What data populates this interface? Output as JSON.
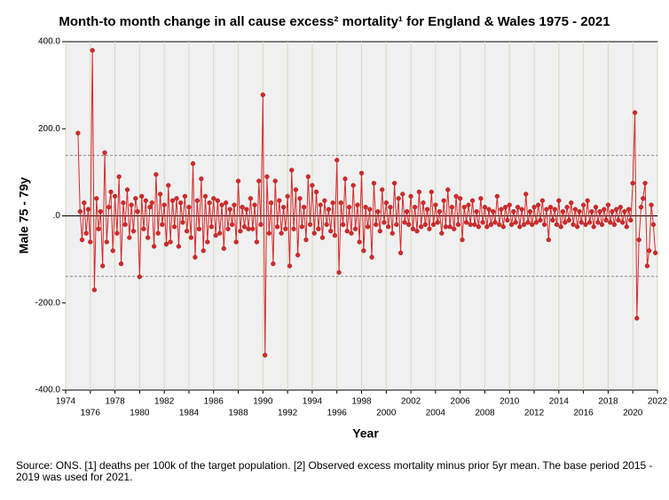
{
  "chart_data": {
    "type": "line",
    "title": "Month-to month change in all cause excess² mortality¹  for England & Wales 1975 - 2021",
    "y_label": "Male 75 - 79y",
    "x_label": "Year",
    "footnote": "Source: ONS. [1] deaths per 100k of the target population. [2] Observed excess mortality minus prior 5yr mean. The base period 2015 - 2019 was used for 2021.",
    "xlim": [
      1974,
      2022
    ],
    "ylim": [
      -400,
      400
    ],
    "xticks": [
      1974,
      1976,
      1978,
      1980,
      1982,
      1984,
      1986,
      1988,
      1990,
      1992,
      1994,
      1996,
      1998,
      2000,
      2002,
      2004,
      2006,
      2008,
      2010,
      2012,
      2014,
      2016,
      2018,
      2020,
      2022
    ],
    "yticks": [
      {
        "value": -400,
        "label": "-400.0"
      },
      {
        "value": -200,
        "label": "-200.0"
      },
      {
        "value": 0,
        "label": ".0"
      },
      {
        "value": 200,
        "label": "200.0"
      },
      {
        "value": 400,
        "label": "400.0"
      }
    ],
    "reference_lines": [
      139,
      0,
      -139
    ],
    "grid": true,
    "x": [
      1975,
      1975.17,
      1975.33,
      1975.5,
      1975.67,
      1975.83,
      1976,
      1976.17,
      1976.33,
      1976.5,
      1976.67,
      1976.83,
      1977,
      1977.17,
      1977.33,
      1977.5,
      1977.67,
      1977.83,
      1978,
      1978.17,
      1978.33,
      1978.5,
      1978.67,
      1978.83,
      1979,
      1979.17,
      1979.33,
      1979.5,
      1979.67,
      1979.83,
      1980,
      1980.17,
      1980.33,
      1980.5,
      1980.67,
      1980.83,
      1981,
      1981.17,
      1981.33,
      1981.5,
      1981.67,
      1981.83,
      1982,
      1982.17,
      1982.33,
      1982.5,
      1982.67,
      1982.83,
      1983,
      1983.17,
      1983.33,
      1983.5,
      1983.67,
      1983.83,
      1984,
      1984.17,
      1984.33,
      1984.5,
      1984.67,
      1984.83,
      1985,
      1985.17,
      1985.33,
      1985.5,
      1985.67,
      1985.83,
      1986,
      1986.17,
      1986.33,
      1986.5,
      1986.67,
      1986.83,
      1987,
      1987.17,
      1987.33,
      1987.5,
      1987.67,
      1987.83,
      1988,
      1988.17,
      1988.33,
      1988.5,
      1988.67,
      1988.83,
      1989,
      1989.17,
      1989.33,
      1989.5,
      1989.67,
      1989.83,
      1990,
      1990.17,
      1990.33,
      1990.5,
      1990.67,
      1990.83,
      1991,
      1991.17,
      1991.33,
      1991.5,
      1991.67,
      1991.83,
      1992,
      1992.17,
      1992.33,
      1992.5,
      1992.67,
      1992.83,
      1993,
      1993.17,
      1993.33,
      1993.5,
      1993.67,
      1993.83,
      1994,
      1994.17,
      1994.33,
      1994.5,
      1994.67,
      1994.83,
      1995,
      1995.17,
      1995.33,
      1995.5,
      1995.67,
      1995.83,
      1996,
      1996.17,
      1996.33,
      1996.5,
      1996.67,
      1996.83,
      1997,
      1997.17,
      1997.33,
      1997.5,
      1997.67,
      1997.83,
      1998,
      1998.17,
      1998.33,
      1998.5,
      1998.67,
      1998.83,
      1999,
      1999.17,
      1999.33,
      1999.5,
      1999.67,
      1999.83,
      2000,
      2000.17,
      2000.33,
      2000.5,
      2000.67,
      2000.83,
      2001,
      2001.17,
      2001.33,
      2001.5,
      2001.67,
      2001.83,
      2002,
      2002.17,
      2002.33,
      2002.5,
      2002.67,
      2002.83,
      2003,
      2003.17,
      2003.33,
      2003.5,
      2003.67,
      2003.83,
      2004,
      2004.17,
      2004.33,
      2004.5,
      2004.67,
      2004.83,
      2005,
      2005.17,
      2005.33,
      2005.5,
      2005.67,
      2005.83,
      2006,
      2006.17,
      2006.33,
      2006.5,
      2006.67,
      2006.83,
      2007,
      2007.17,
      2007.33,
      2007.5,
      2007.67,
      2007.83,
      2008,
      2008.17,
      2008.33,
      2008.5,
      2008.67,
      2008.83,
      2009,
      2009.17,
      2009.33,
      2009.5,
      2009.67,
      2009.83,
      2010,
      2010.17,
      2010.33,
      2010.5,
      2010.67,
      2010.83,
      2011,
      2011.17,
      2011.33,
      2011.5,
      2011.67,
      2011.83,
      2012,
      2012.17,
      2012.33,
      2012.5,
      2012.67,
      2012.83,
      2013,
      2013.17,
      2013.33,
      2013.5,
      2013.67,
      2013.83,
      2014,
      2014.17,
      2014.33,
      2014.5,
      2014.67,
      2014.83,
      2015,
      2015.17,
      2015.33,
      2015.5,
      2015.67,
      2015.83,
      2016,
      2016.17,
      2016.33,
      2016.5,
      2016.67,
      2016.83,
      2017,
      2017.17,
      2017.33,
      2017.5,
      2017.67,
      2017.83,
      2018,
      2018.17,
      2018.33,
      2018.5,
      2018.67,
      2018.83,
      2019,
      2019.17,
      2019.33,
      2019.5,
      2019.67,
      2019.83,
      2020,
      2020.17,
      2020.33,
      2020.5,
      2020.67,
      2020.83,
      2021,
      2021.17,
      2021.33,
      2021.5,
      2021.67,
      2021.83
    ],
    "series": [
      {
        "color": "#d42a2a",
        "values": [
          190,
          10,
          -55,
          30,
          -40,
          15,
          -60,
          380,
          -170,
          40,
          -30,
          10,
          -115,
          145,
          -60,
          20,
          55,
          -80,
          45,
          -40,
          90,
          -110,
          30,
          -20,
          60,
          -50,
          25,
          -35,
          40,
          10,
          -140,
          45,
          -30,
          35,
          -50,
          20,
          30,
          -70,
          95,
          -40,
          50,
          -20,
          25,
          -65,
          70,
          -60,
          35,
          -25,
          40,
          -70,
          30,
          -15,
          45,
          -35,
          20,
          -50,
          120,
          -95,
          35,
          -30,
          85,
          -80,
          45,
          -60,
          30,
          -25,
          40,
          -45,
          35,
          -40,
          25,
          -75,
          30,
          -30,
          15,
          -20,
          25,
          -60,
          80,
          -35,
          20,
          -25,
          15,
          -30,
          40,
          -30,
          25,
          -60,
          80,
          -20,
          278,
          -320,
          90,
          -40,
          30,
          -110,
          80,
          -25,
          35,
          -40,
          20,
          -30,
          45,
          -115,
          105,
          -30,
          60,
          -90,
          40,
          -25,
          20,
          -55,
          90,
          -20,
          70,
          -40,
          55,
          -30,
          25,
          -50,
          35,
          -20,
          15,
          -35,
          30,
          -45,
          128,
          -130,
          30,
          -20,
          85,
          -35,
          20,
          -40,
          70,
          -30,
          25,
          -60,
          98,
          -80,
          20,
          -25,
          15,
          -95,
          75,
          -20,
          10,
          -35,
          60,
          -15,
          30,
          -25,
          20,
          -40,
          75,
          -20,
          40,
          -85,
          50,
          -15,
          10,
          -20,
          45,
          -30,
          20,
          -35,
          55,
          -25,
          30,
          -20,
          15,
          -30,
          55,
          -20,
          25,
          -15,
          10,
          -40,
          35,
          -25,
          60,
          -25,
          20,
          -30,
          45,
          -20,
          40,
          -55,
          20,
          -15,
          25,
          -20,
          35,
          -20,
          10,
          -25,
          40,
          -15,
          20,
          -25,
          15,
          -20,
          10,
          -15,
          45,
          -20,
          15,
          -25,
          20,
          -10,
          25,
          -20,
          10,
          -15,
          20,
          -25,
          15,
          -20,
          50,
          -15,
          10,
          -20,
          20,
          -15,
          25,
          -10,
          35,
          -20,
          15,
          -55,
          20,
          -10,
          15,
          -20,
          35,
          -25,
          10,
          -15,
          20,
          -10,
          30,
          -20,
          15,
          -25,
          10,
          -15,
          25,
          -20,
          35,
          -15,
          10,
          -25,
          20,
          -15,
          10,
          -20,
          15,
          -10,
          25,
          -15,
          10,
          -20,
          15,
          -10,
          20,
          -15,
          10,
          -25,
          15,
          -10,
          75,
          237,
          -235,
          -55,
          20,
          40,
          75,
          -115,
          -80,
          25,
          -20,
          -85
        ]
      }
    ]
  }
}
